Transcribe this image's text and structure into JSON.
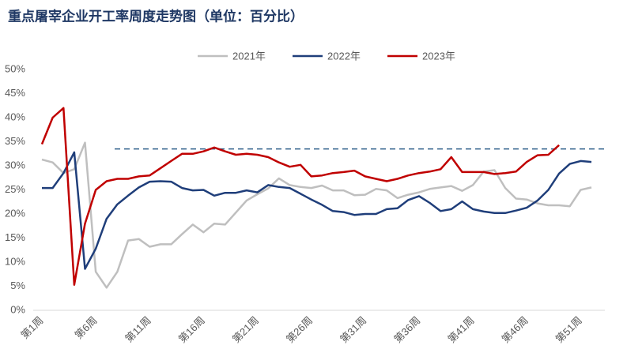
{
  "chart_data": {
    "type": "line",
    "title": "重点屠宰企业开工率周度走势图（单位：百分比）",
    "categories": [
      "第1周",
      null,
      null,
      null,
      null,
      "第6周",
      null,
      null,
      null,
      null,
      "第11周",
      null,
      null,
      null,
      null,
      "第16周",
      null,
      null,
      null,
      null,
      "第21周",
      null,
      null,
      null,
      null,
      "第26周",
      null,
      null,
      null,
      null,
      "第31周",
      null,
      null,
      null,
      null,
      "第36周",
      null,
      null,
      null,
      null,
      "第41周",
      null,
      null,
      null,
      null,
      "第46周",
      null,
      null,
      null,
      null,
      "第51周",
      null
    ],
    "series": [
      {
        "name": "2021年",
        "color": "#bfbfbf",
        "values": [
          31.3,
          30.7,
          28.5,
          29.3,
          34.8,
          8,
          4.7,
          8,
          14.5,
          14.8,
          13.2,
          13.7,
          13.7,
          15.8,
          17.8,
          16.2,
          18,
          17.8,
          20.3,
          22.8,
          24.1,
          25.3,
          27.4,
          26,
          25.6,
          25.4,
          25.9,
          24.9,
          24.9,
          23.9,
          24,
          25.2,
          24.9,
          23.3,
          24,
          24.5,
          25.2,
          25.5,
          25.8,
          24.8,
          26,
          28.8,
          29.1,
          25.4,
          23.2,
          23,
          22.2,
          21.8,
          21.8,
          21.6,
          25,
          25.5
        ]
      },
      {
        "name": "2022年",
        "color": "#1f3e7a",
        "values": [
          25.4,
          25.4,
          28.5,
          32.8,
          8.6,
          12.8,
          19,
          22,
          23.8,
          25.5,
          26.7,
          26.8,
          26.7,
          25.4,
          24.9,
          25,
          23.8,
          24.4,
          24.4,
          24.9,
          24.5,
          26,
          25.6,
          25.4,
          24.2,
          23,
          21.9,
          20.6,
          20.4,
          19.8,
          20,
          20,
          21,
          21.2,
          22.9,
          23.7,
          22.3,
          20.6,
          21,
          22.6,
          21,
          20.5,
          20.2,
          20.2,
          20.7,
          21.3,
          22.8,
          25,
          28.4,
          30.4,
          31,
          30.8
        ]
      },
      {
        "name": "2023年",
        "color": "#c00000",
        "values": [
          34.5,
          40,
          42,
          5.3,
          18,
          25,
          26.8,
          27.3,
          27.3,
          27.8,
          28,
          29.5,
          31,
          32.5,
          32.5,
          33,
          33.8,
          33,
          32.3,
          32.5,
          32.3,
          31.8,
          30.7,
          29.8,
          30.2,
          27.8,
          28,
          28.5,
          28.7,
          29,
          27.8,
          27.3,
          26.8,
          27.3,
          28,
          28.5,
          28.8,
          29.3,
          31.8,
          28.7,
          28.7,
          28.7,
          28.3,
          28.5,
          28.8,
          30.8,
          32.2,
          32.3,
          34.3,
          null,
          null,
          null
        ]
      }
    ],
    "hline": 33.5,
    "ylim": [
      0,
      50
    ],
    "yticks": [
      {
        "value": 0,
        "label": "0%"
      },
      {
        "value": 5,
        "label": "5%"
      },
      {
        "value": 10,
        "label": "10%"
      },
      {
        "value": 15,
        "label": "15%"
      },
      {
        "value": 20,
        "label": "20%"
      },
      {
        "value": 25,
        "label": "25%"
      },
      {
        "value": 30,
        "label": "30%"
      },
      {
        "value": 35,
        "label": "35%"
      },
      {
        "value": 40,
        "label": "40%"
      },
      {
        "value": 45,
        "label": "45%"
      },
      {
        "value": 50,
        "label": "50%"
      }
    ],
    "legend": "top"
  }
}
